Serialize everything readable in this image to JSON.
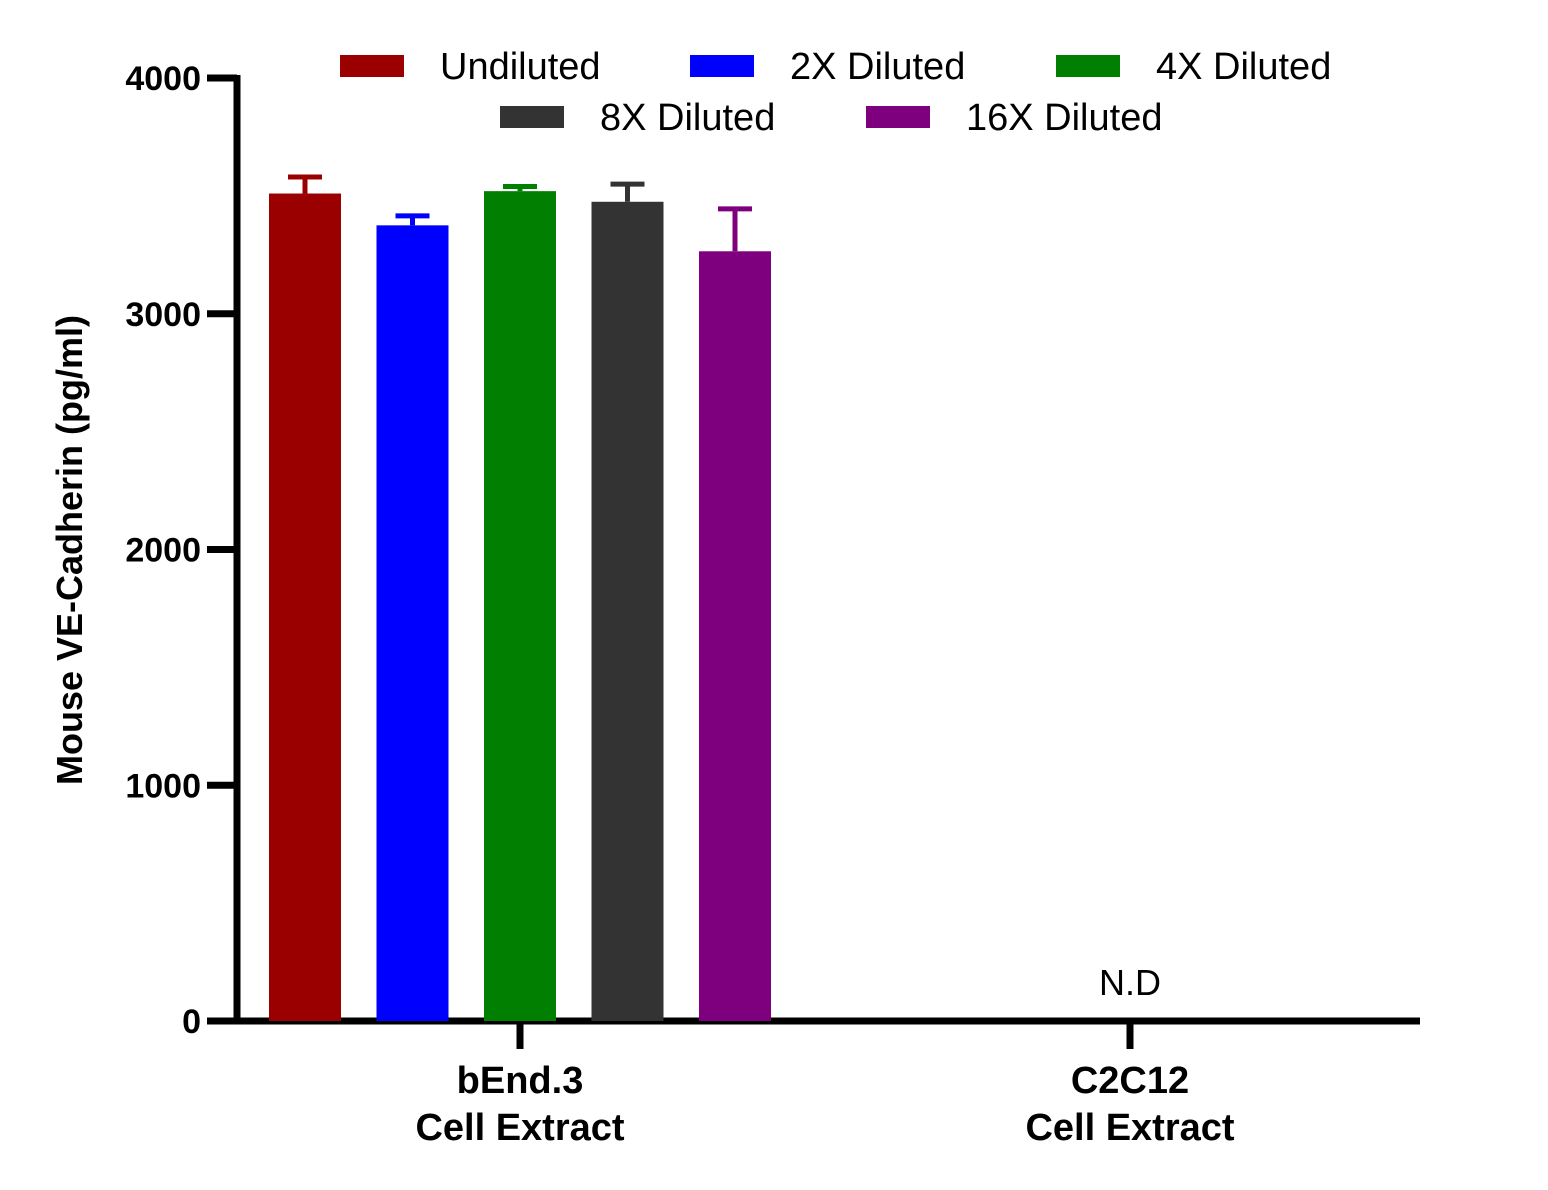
{
  "chart_data": {
    "type": "bar",
    "title": "",
    "ylabel": "Mouse VE-Cadherin (pg/ml)",
    "xlabel": "",
    "ylim": [
      0,
      4000
    ],
    "yticks": [
      "0",
      "1000",
      "2000",
      "3000",
      "4000"
    ],
    "yticks_values": [
      0,
      1000,
      2000,
      3000,
      4000
    ],
    "categories": [
      {
        "line1": "bEnd.3",
        "line2": "Cell Extract"
      },
      {
        "line1": "C2C12",
        "line2": "Cell Extract"
      }
    ],
    "series": [
      {
        "name": "Undiluted",
        "color": "#9b0000",
        "values": [
          3510,
          null
        ],
        "errors": [
          70,
          null
        ]
      },
      {
        "name": "2X Diluted",
        "color": "#0000ff",
        "values": [
          3375,
          null
        ],
        "errors": [
          40,
          null
        ]
      },
      {
        "name": "4X Diluted",
        "color": "#007f00",
        "values": [
          3520,
          null
        ],
        "errors": [
          20,
          null
        ]
      },
      {
        "name": "8X Diluted",
        "color": "#333333",
        "values": [
          3475,
          null
        ],
        "errors": [
          75,
          null
        ]
      },
      {
        "name": "16X Diluted",
        "color": "#7f007f",
        "values": [
          3265,
          null
        ],
        "errors": [
          180,
          null
        ]
      }
    ],
    "annotations": [
      {
        "text": "N.D",
        "category_index": 1
      }
    ],
    "legend_position": "top",
    "grid": false
  }
}
